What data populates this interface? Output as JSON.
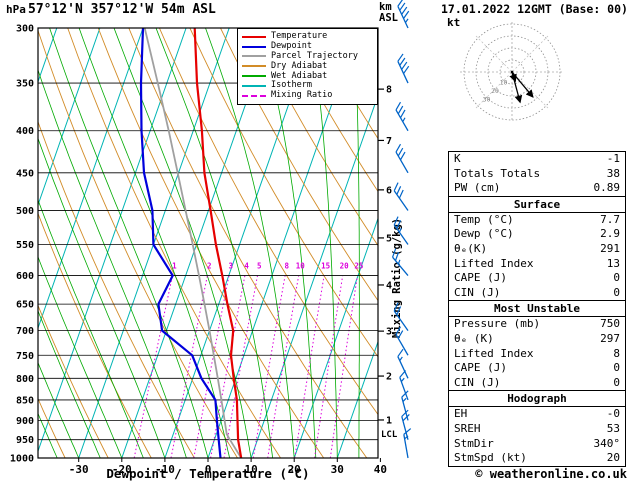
{
  "header": {
    "station": "57°12'N 357°12'W 54m ASL",
    "datetime": "17.01.2022 12GMT (Base: 00)"
  },
  "axes": {
    "pressure_unit": "hPa",
    "km_unit": "km\nASL",
    "x_title": "Dewpoint / Temperature (°C)",
    "mixing_ratio_title": "Mixing Ratio (g/kg)",
    "hodograph_unit": "kt"
  },
  "legend": [
    {
      "label": "Temperature",
      "color": "#e60000"
    },
    {
      "label": "Dewpoint",
      "color": "#0000dc"
    },
    {
      "label": "Parcel Trajectory",
      "color": "#a0a0a0"
    },
    {
      "label": "Dry Adiabat",
      "color": "#d28c28"
    },
    {
      "label": "Wet Adiabat",
      "color": "#00aa00"
    },
    {
      "label": "Isotherm",
      "color": "#00b4b4"
    },
    {
      "label": "Mixing Ratio",
      "color": "#dc00dc",
      "dash": true
    }
  ],
  "colors": {
    "temperature": "#e60000",
    "dewpoint": "#0000dc",
    "parcel": "#a0a0a0",
    "dry_adiabat": "#d28c28",
    "wet_adiabat": "#00aa00",
    "isotherm": "#00b4b4",
    "mixing_ratio": "#dc00dc",
    "wind_barb": "#0064c8"
  },
  "chart_data": {
    "type": "skewt-log-p-sounding",
    "pressure_ticks": [
      300,
      350,
      400,
      450,
      500,
      550,
      600,
      650,
      700,
      750,
      800,
      850,
      900,
      950,
      1000
    ],
    "temp_ticks": [
      -30,
      -20,
      -10,
      0,
      10,
      20,
      30,
      40
    ],
    "km_ticks": [
      {
        "km": 8,
        "p": 356
      },
      {
        "km": 7,
        "p": 411
      },
      {
        "km": 6,
        "p": 472
      },
      {
        "km": 5,
        "p": 540
      },
      {
        "km": 4,
        "p": 616
      },
      {
        "km": 3,
        "p": 701
      },
      {
        "km": 2,
        "p": 795
      },
      {
        "km": 1,
        "p": 899
      }
    ],
    "lcl": {
      "label": "LCL",
      "p": 935
    },
    "mixing_ratio_lines": [
      1,
      2,
      3,
      4,
      5,
      8,
      10,
      15,
      20,
      25
    ],
    "temperature_profile": [
      {
        "p": 1000,
        "t": 7.7
      },
      {
        "p": 950,
        "t": 5.5
      },
      {
        "p": 900,
        "t": 3.8
      },
      {
        "p": 850,
        "t": 2.0
      },
      {
        "p": 800,
        "t": -0.5
      },
      {
        "p": 750,
        "t": -3.0
      },
      {
        "p": 700,
        "t": -4.5
      },
      {
        "p": 650,
        "t": -8.0
      },
      {
        "p": 600,
        "t": -11.5
      },
      {
        "p": 550,
        "t": -15.5
      },
      {
        "p": 500,
        "t": -19.5
      },
      {
        "p": 450,
        "t": -24.0
      },
      {
        "p": 400,
        "t": -28.0
      },
      {
        "p": 350,
        "t": -33.0
      },
      {
        "p": 300,
        "t": -38.0
      }
    ],
    "dewpoint_profile": [
      {
        "p": 1000,
        "t": 2.9
      },
      {
        "p": 950,
        "t": 1.0
      },
      {
        "p": 900,
        "t": -1.0
      },
      {
        "p": 850,
        "t": -3.0
      },
      {
        "p": 800,
        "t": -8.0
      },
      {
        "p": 750,
        "t": -12.0
      },
      {
        "p": 700,
        "t": -21.0
      },
      {
        "p": 650,
        "t": -24.0
      },
      {
        "p": 600,
        "t": -23.0
      },
      {
        "p": 550,
        "t": -30.0
      },
      {
        "p": 500,
        "t": -33.0
      },
      {
        "p": 450,
        "t": -38.0
      },
      {
        "p": 400,
        "t": -42.0
      },
      {
        "p": 350,
        "t": -46.0
      },
      {
        "p": 300,
        "t": -50.0
      }
    ],
    "parcel_profile": [
      {
        "p": 1000,
        "t": 7.7
      },
      {
        "p": 950,
        "t": 3.6
      },
      {
        "p": 935,
        "t": 2.4
      },
      {
        "p": 900,
        "t": 0.8
      },
      {
        "p": 850,
        "t": -1.6
      },
      {
        "p": 800,
        "t": -4.2
      },
      {
        "p": 750,
        "t": -7.0
      },
      {
        "p": 700,
        "t": -10.0
      },
      {
        "p": 650,
        "t": -13.3
      },
      {
        "p": 600,
        "t": -16.9
      },
      {
        "p": 550,
        "t": -20.9
      },
      {
        "p": 500,
        "t": -25.3
      },
      {
        "p": 450,
        "t": -30.2
      },
      {
        "p": 400,
        "t": -35.7
      },
      {
        "p": 350,
        "t": -42.1
      },
      {
        "p": 300,
        "t": -49.6
      }
    ],
    "winds": [
      {
        "p": 300,
        "kt": 45,
        "dir": 335
      },
      {
        "p": 350,
        "kt": 40,
        "dir": 335
      },
      {
        "p": 400,
        "kt": 35,
        "dir": 330
      },
      {
        "p": 450,
        "kt": 30,
        "dir": 330
      },
      {
        "p": 500,
        "kt": 30,
        "dir": 325
      },
      {
        "p": 550,
        "kt": 25,
        "dir": 325
      },
      {
        "p": 600,
        "kt": 25,
        "dir": 320
      },
      {
        "p": 700,
        "kt": 20,
        "dir": 325
      },
      {
        "p": 750,
        "kt": 20,
        "dir": 330
      },
      {
        "p": 800,
        "kt": 15,
        "dir": 335
      },
      {
        "p": 850,
        "kt": 15,
        "dir": 340
      },
      {
        "p": 900,
        "kt": 15,
        "dir": 345
      },
      {
        "p": 950,
        "kt": 20,
        "dir": 345
      },
      {
        "p": 1000,
        "kt": 15,
        "dir": 350
      }
    ],
    "hodograph": {
      "rings": [
        10,
        20,
        30,
        40
      ],
      "ring_labels": [
        10,
        20,
        30
      ],
      "vectors": [
        {
          "az": 165,
          "kt": 26
        },
        {
          "az": 140,
          "kt": 27
        },
        {
          "az": 160,
          "kt": 8
        }
      ]
    }
  },
  "indices": {
    "k": {
      "label": "K",
      "value": "-1"
    },
    "tt": {
      "label": "Totals Totals",
      "value": "38"
    },
    "pw": {
      "label": "PW (cm)",
      "value": "0.89"
    },
    "surface_title": "Surface",
    "sfc": [
      {
        "label": "Temp (°C)",
        "value": "7.7"
      },
      {
        "label": "Dewp (°C)",
        "value": "2.9"
      },
      {
        "label": "θₑ(K)",
        "value": "291"
      },
      {
        "label": "Lifted Index",
        "value": "13"
      },
      {
        "label": "CAPE (J)",
        "value": "0"
      },
      {
        "label": "CIN (J)",
        "value": "0"
      }
    ],
    "mu_title": "Most Unstable",
    "mu": [
      {
        "label": "Pressure (mb)",
        "value": "750"
      },
      {
        "label": "θₑ (K)",
        "value": "297"
      },
      {
        "label": "Lifted Index",
        "value": "8"
      },
      {
        "label": "CAPE (J)",
        "value": "0"
      },
      {
        "label": "CIN (J)",
        "value": "0"
      }
    ],
    "hodo_title": "Hodograph",
    "hodo": [
      {
        "label": "EH",
        "value": "-0"
      },
      {
        "label": "SREH",
        "value": "53"
      },
      {
        "label": "StmDir",
        "value": "340°"
      },
      {
        "label": "StmSpd (kt)",
        "value": "20"
      }
    ]
  },
  "footer": {
    "copyright": "© weatheronline.co.uk"
  }
}
